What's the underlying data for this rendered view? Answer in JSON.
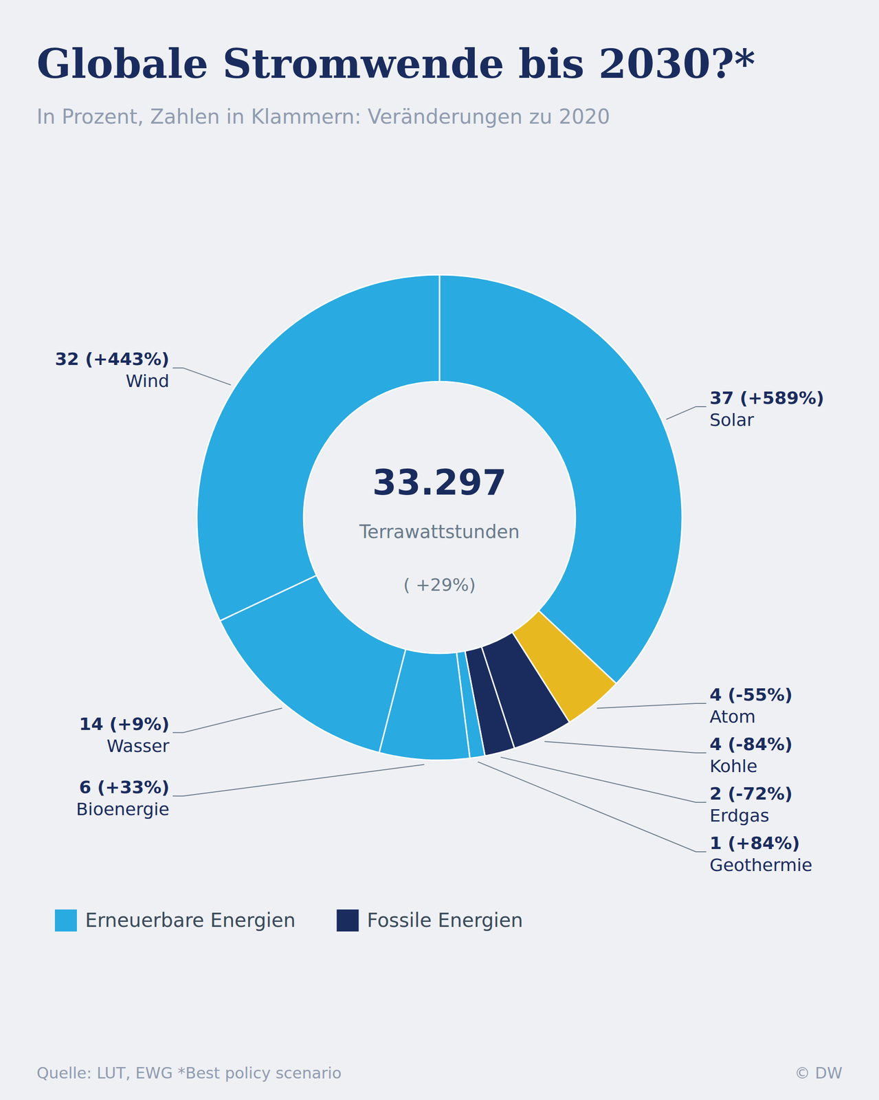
{
  "chart_data": {
    "type": "pie",
    "title": "Globale Stromwende bis 2030?*",
    "subtitle": "In Prozent, Zahlen in Klammern: Veränderungen zu 2020",
    "categories": [
      "Solar",
      "Atom",
      "Kohle",
      "Erdgas",
      "Geothermie",
      "Bioenergie",
      "Wasser",
      "Wind"
    ],
    "values": [
      37,
      4,
      4,
      2,
      1,
      6,
      14,
      32
    ],
    "value_labels": [
      "37 (+589%)",
      "4 (-55%)",
      "4 (-84%)",
      "2 (-72%)",
      "1 (+84%)",
      "6 (+33%)",
      "14 (+9%)",
      "32 (+443%)"
    ],
    "colors": [
      "#29aae1",
      "#e8b820",
      "#1a2c5e",
      "#1a2c5e",
      "#29aae1",
      "#29aae1",
      "#29aae1",
      "#29aae1"
    ],
    "data_labels": true,
    "center": {
      "value": 33297,
      "label": "33.297",
      "unit_label": "Terrawattstunden",
      "change_label": "( +29%)"
    },
    "legend": "bottom",
    "legend_items": [
      {
        "label": "Erneuerbare Energien",
        "color": "#29aae1"
      },
      {
        "label": "Fossile Energien",
        "color": "#1a2c5e"
      }
    ],
    "source": "Quelle: LUT, EWG  *Best policy scenario",
    "copyright": "© DW"
  }
}
